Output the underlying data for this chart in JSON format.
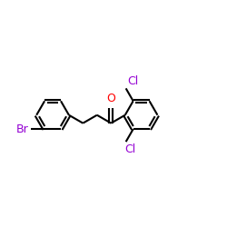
{
  "bg_color": "#ffffff",
  "bond_color": "#000000",
  "br_color": "#9400d3",
  "cl_color": "#9400d3",
  "o_color": "#ff0000",
  "bond_width": 1.5,
  "font_size": 9,
  "xlim": [
    -4.0,
    3.2
  ],
  "ylim": [
    -1.6,
    1.4
  ]
}
